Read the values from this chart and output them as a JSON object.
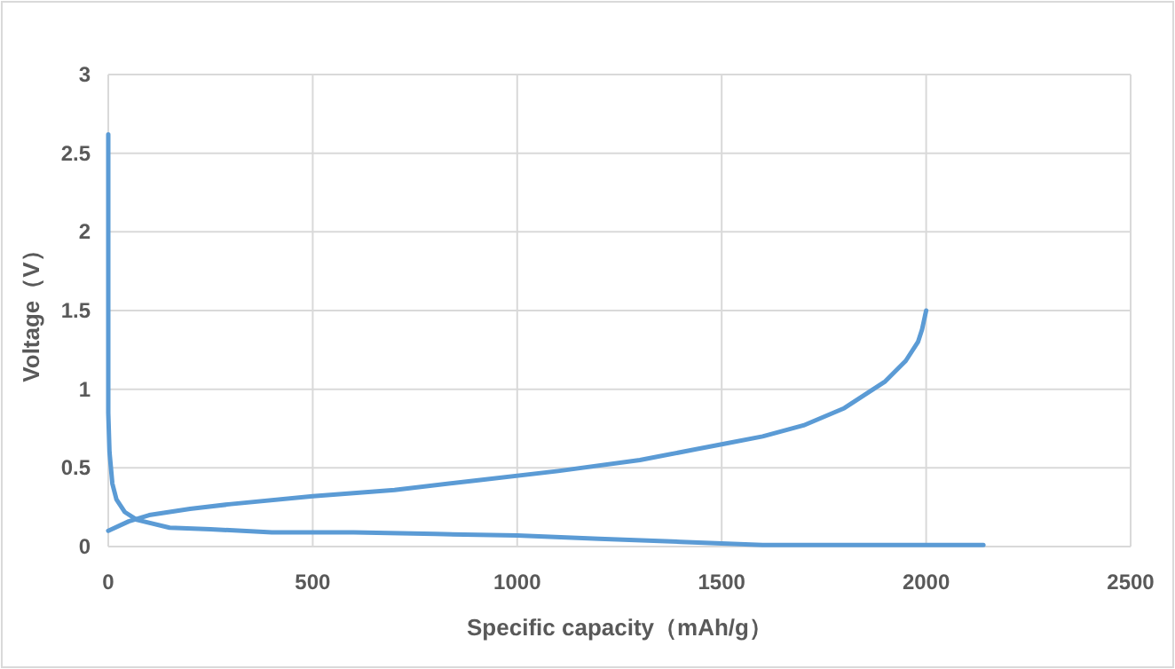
{
  "chart_data": {
    "type": "line",
    "xlabel": "Specific capacity（mAh/g）",
    "ylabel": "Voltage（V）",
    "xlim": [
      0,
      2500
    ],
    "xticks": [
      0,
      500,
      1000,
      1500,
      2000,
      2500
    ],
    "ylim": [
      0,
      3
    ],
    "yticks": [
      0,
      0.5,
      1,
      1.5,
      2,
      2.5,
      3
    ],
    "grid": true,
    "marker": "none",
    "line_style": "solid",
    "series": [
      {
        "color": "#5b9bd5",
        "x": [
          0,
          0,
          3,
          10,
          20,
          40,
          70,
          150,
          250,
          400,
          600,
          800,
          1000,
          1200,
          1400,
          1600,
          1800,
          2140
        ],
        "values": [
          2.62,
          0.85,
          0.6,
          0.4,
          0.3,
          0.22,
          0.17,
          0.12,
          0.11,
          0.09,
          0.09,
          0.08,
          0.07,
          0.05,
          0.03,
          0.01,
          0.01,
          0.01
        ]
      },
      {
        "color": "#5b9bd5",
        "x": [
          0,
          50,
          100,
          200,
          300,
          500,
          700,
          900,
          1100,
          1300,
          1500,
          1600,
          1700,
          1800,
          1900,
          1950,
          1980,
          1990,
          2000
        ],
        "values": [
          0.1,
          0.16,
          0.2,
          0.24,
          0.27,
          0.32,
          0.36,
          0.42,
          0.48,
          0.55,
          0.65,
          0.7,
          0.77,
          0.88,
          1.05,
          1.18,
          1.3,
          1.38,
          1.5
        ]
      }
    ]
  }
}
